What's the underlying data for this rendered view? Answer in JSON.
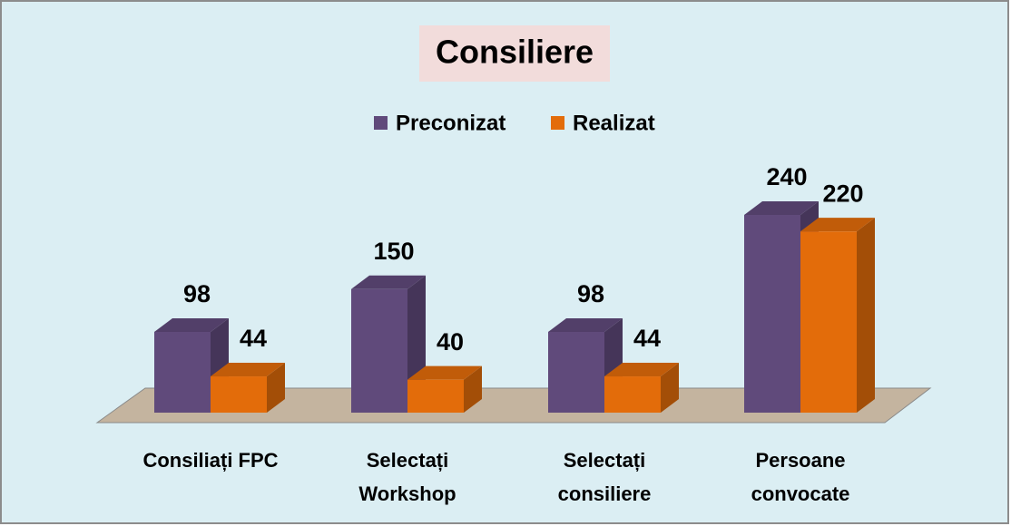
{
  "chart_data": {
    "type": "bar3d",
    "title": "Consiliere",
    "categories": [
      "Consiliați FPC",
      "Selectați Workshop",
      "Selectați consiliere",
      "Persoane convocate"
    ],
    "series": [
      {
        "name": "Preconizat",
        "color": "#604a7b",
        "values": [
          98,
          150,
          98,
          240
        ]
      },
      {
        "name": "Realizat",
        "color": "#e36c0a",
        "values": [
          44,
          40,
          44,
          220
        ]
      }
    ],
    "legend": "top"
  }
}
